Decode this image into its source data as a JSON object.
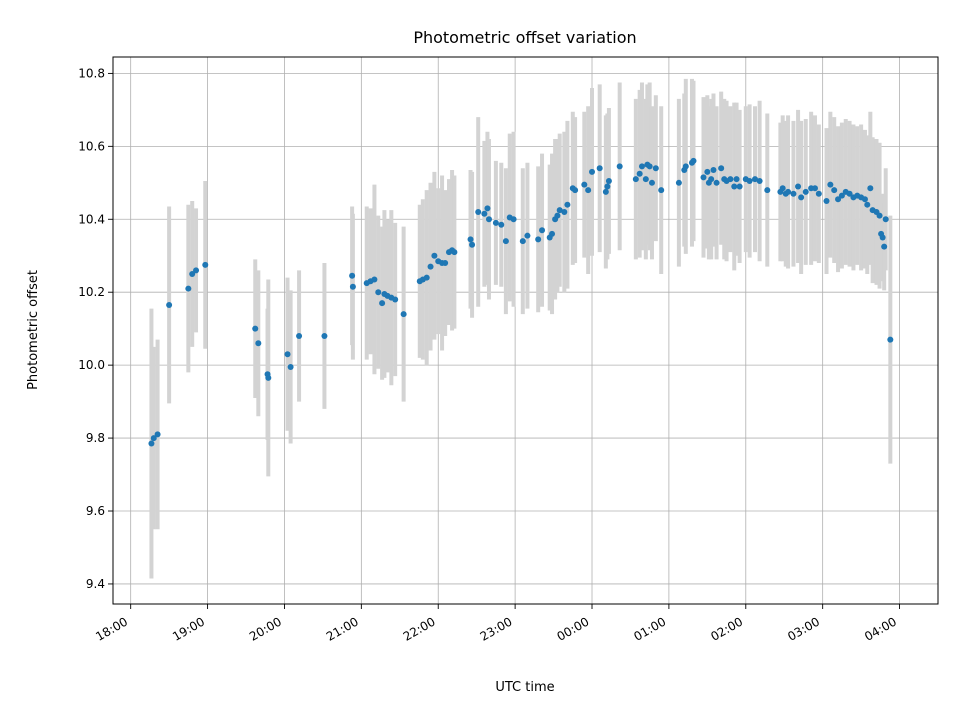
{
  "chart_data": {
    "type": "scatter",
    "title": "Photometric offset variation",
    "xlabel": "UTC time",
    "ylabel": "Photometric offset",
    "x_unit": "hours since 18:00 UTC",
    "xlim": [
      -0.23,
      10.5
    ],
    "ylim": [
      9.345,
      10.845
    ],
    "grid": true,
    "xticks": [
      {
        "value": 0,
        "label": "18:00"
      },
      {
        "value": 1,
        "label": "19:00"
      },
      {
        "value": 2,
        "label": "20:00"
      },
      {
        "value": 3,
        "label": "21:00"
      },
      {
        "value": 4,
        "label": "22:00"
      },
      {
        "value": 5,
        "label": "23:00"
      },
      {
        "value": 6,
        "label": "00:00"
      },
      {
        "value": 7,
        "label": "01:00"
      },
      {
        "value": 8,
        "label": "02:00"
      },
      {
        "value": 9,
        "label": "03:00"
      },
      {
        "value": 10,
        "label": "04:00"
      }
    ],
    "yticks": [
      {
        "value": 9.4,
        "label": "9.4"
      },
      {
        "value": 9.6,
        "label": "9.6"
      },
      {
        "value": 9.8,
        "label": "9.8"
      },
      {
        "value": 10.0,
        "label": "10.0"
      },
      {
        "value": 10.2,
        "label": "10.2"
      },
      {
        "value": 10.4,
        "label": "10.4"
      },
      {
        "value": 10.6,
        "label": "10.6"
      },
      {
        "value": 10.8,
        "label": "10.8"
      }
    ],
    "marker_color": "#1f77b4",
    "errorbar_color": "#d3d3d3",
    "series": [
      {
        "name": "Photometric offset",
        "points": [
          [
            0.27,
            9.785,
            0.37
          ],
          [
            0.3,
            9.8,
            0.25
          ],
          [
            0.35,
            9.81,
            0.26
          ],
          [
            0.5,
            10.165,
            0.27
          ],
          [
            0.75,
            10.21,
            0.23
          ],
          [
            0.8,
            10.25,
            0.2
          ],
          [
            0.85,
            10.26,
            0.17
          ],
          [
            0.97,
            10.275,
            0.23
          ],
          [
            1.62,
            10.1,
            0.19
          ],
          [
            1.66,
            10.06,
            0.2
          ],
          [
            1.78,
            9.975,
            0.18
          ],
          [
            1.79,
            9.965,
            0.27
          ],
          [
            2.04,
            10.03,
            0.21
          ],
          [
            2.08,
            9.995,
            0.21
          ],
          [
            2.19,
            10.08,
            0.18
          ],
          [
            2.52,
            10.08,
            0.2
          ],
          [
            2.88,
            10.245,
            0.19
          ],
          [
            2.89,
            10.215,
            0.2
          ],
          [
            3.07,
            10.225,
            0.21
          ],
          [
            3.12,
            10.23,
            0.2
          ],
          [
            3.17,
            10.235,
            0.26
          ],
          [
            3.22,
            10.2,
            0.21
          ],
          [
            3.27,
            10.17,
            0.21
          ],
          [
            3.3,
            10.195,
            0.23
          ],
          [
            3.34,
            10.19,
            0.21
          ],
          [
            3.39,
            10.185,
            0.24
          ],
          [
            3.44,
            10.18,
            0.21
          ],
          [
            3.55,
            10.14,
            0.24
          ],
          [
            3.76,
            10.23,
            0.21
          ],
          [
            3.8,
            10.235,
            0.22
          ],
          [
            3.85,
            10.24,
            0.24
          ],
          [
            3.9,
            10.27,
            0.23
          ],
          [
            3.95,
            10.3,
            0.23
          ],
          [
            4.0,
            10.285,
            0.2
          ],
          [
            4.05,
            10.28,
            0.24
          ],
          [
            4.09,
            10.28,
            0.2
          ],
          [
            4.14,
            10.31,
            0.2
          ],
          [
            4.18,
            10.315,
            0.22
          ],
          [
            4.21,
            10.31,
            0.21
          ],
          [
            4.42,
            10.345,
            0.19
          ],
          [
            4.44,
            10.33,
            0.2
          ],
          [
            4.52,
            10.42,
            0.26
          ],
          [
            4.6,
            10.415,
            0.2
          ],
          [
            4.64,
            10.43,
            0.21
          ],
          [
            4.66,
            10.4,
            0.22
          ],
          [
            4.75,
            10.39,
            0.17
          ],
          [
            4.82,
            10.385,
            0.17
          ],
          [
            4.88,
            10.34,
            0.2
          ],
          [
            4.93,
            10.405,
            0.23
          ],
          [
            4.98,
            10.4,
            0.24
          ],
          [
            5.1,
            10.34,
            0.2
          ],
          [
            5.16,
            10.355,
            0.2
          ],
          [
            5.3,
            10.345,
            0.2
          ],
          [
            5.35,
            10.37,
            0.21
          ],
          [
            5.45,
            10.35,
            0.2
          ],
          [
            5.48,
            10.36,
            0.22
          ],
          [
            5.52,
            10.4,
            0.22
          ],
          [
            5.55,
            10.41,
            0.21
          ],
          [
            5.58,
            10.425,
            0.21
          ],
          [
            5.64,
            10.42,
            0.22
          ],
          [
            5.68,
            10.44,
            0.23
          ],
          [
            5.75,
            10.485,
            0.21
          ],
          [
            5.78,
            10.48,
            0.2
          ],
          [
            5.9,
            10.495,
            0.2
          ],
          [
            5.95,
            10.48,
            0.23
          ],
          [
            6.0,
            10.53,
            0.23
          ],
          [
            6.1,
            10.54,
            0.23
          ],
          [
            6.18,
            10.475,
            0.21
          ],
          [
            6.2,
            10.49,
            0.2
          ],
          [
            6.22,
            10.505,
            0.2
          ],
          [
            6.36,
            10.545,
            0.23
          ],
          [
            6.57,
            10.51,
            0.22
          ],
          [
            6.62,
            10.525,
            0.23
          ],
          [
            6.65,
            10.545,
            0.23
          ],
          [
            6.7,
            10.51,
            0.22
          ],
          [
            6.72,
            10.55,
            0.22
          ],
          [
            6.75,
            10.545,
            0.23
          ],
          [
            6.78,
            10.5,
            0.21
          ],
          [
            6.83,
            10.54,
            0.2
          ],
          [
            6.9,
            10.48,
            0.23
          ],
          [
            7.13,
            10.5,
            0.23
          ],
          [
            7.2,
            10.535,
            0.21
          ],
          [
            7.22,
            10.545,
            0.24
          ],
          [
            7.3,
            10.555,
            0.23
          ],
          [
            7.32,
            10.56,
            0.22
          ],
          [
            7.45,
            10.515,
            0.22
          ],
          [
            7.5,
            10.53,
            0.21
          ],
          [
            7.52,
            10.5,
            0.21
          ],
          [
            7.55,
            10.51,
            0.22
          ],
          [
            7.58,
            10.535,
            0.21
          ],
          [
            7.62,
            10.5,
            0.21
          ],
          [
            7.68,
            10.54,
            0.21
          ],
          [
            7.72,
            10.51,
            0.22
          ],
          [
            7.75,
            10.505,
            0.22
          ],
          [
            7.8,
            10.51,
            0.2
          ],
          [
            7.85,
            10.49,
            0.23
          ],
          [
            7.88,
            10.51,
            0.21
          ],
          [
            7.92,
            10.49,
            0.21
          ],
          [
            8.0,
            10.51,
            0.2
          ],
          [
            8.05,
            10.505,
            0.21
          ],
          [
            8.12,
            10.51,
            0.2
          ],
          [
            8.18,
            10.505,
            0.22
          ],
          [
            8.28,
            10.48,
            0.21
          ],
          [
            8.45,
            10.475,
            0.19
          ],
          [
            8.48,
            10.485,
            0.2
          ],
          [
            8.52,
            10.47,
            0.2
          ],
          [
            8.55,
            10.475,
            0.21
          ],
          [
            8.62,
            10.47,
            0.2
          ],
          [
            8.68,
            10.49,
            0.21
          ],
          [
            8.72,
            10.46,
            0.21
          ],
          [
            8.78,
            10.475,
            0.2
          ],
          [
            8.85,
            10.485,
            0.21
          ],
          [
            8.9,
            10.485,
            0.2
          ],
          [
            8.95,
            10.47,
            0.19
          ],
          [
            9.05,
            10.45,
            0.2
          ],
          [
            9.1,
            10.495,
            0.2
          ],
          [
            9.15,
            10.48,
            0.2
          ],
          [
            9.2,
            10.455,
            0.2
          ],
          [
            9.25,
            10.465,
            0.2
          ],
          [
            9.3,
            10.475,
            0.2
          ],
          [
            9.35,
            10.47,
            0.2
          ],
          [
            9.4,
            10.46,
            0.2
          ],
          [
            9.45,
            10.465,
            0.19
          ],
          [
            9.5,
            10.46,
            0.2
          ],
          [
            9.55,
            10.455,
            0.19
          ],
          [
            9.58,
            10.44,
            0.19
          ],
          [
            9.62,
            10.485,
            0.21
          ],
          [
            9.65,
            10.425,
            0.2
          ],
          [
            9.7,
            10.42,
            0.2
          ],
          [
            9.74,
            10.41,
            0.2
          ],
          [
            9.76,
            10.36,
            0.1
          ],
          [
            9.78,
            10.35,
            0.12
          ],
          [
            9.8,
            10.325,
            0.12
          ],
          [
            9.82,
            10.4,
            0.14
          ],
          [
            9.88,
            10.07,
            0.34
          ]
        ]
      }
    ]
  }
}
